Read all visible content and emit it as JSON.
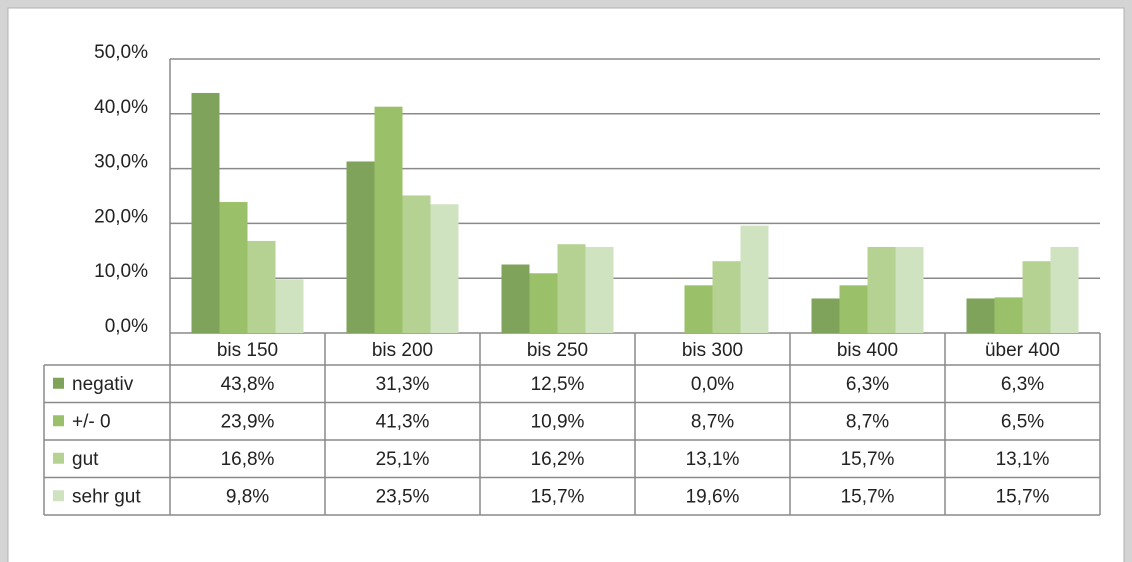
{
  "chart_data": {
    "type": "bar",
    "categories": [
      "bis 150",
      "bis 200",
      "bis 250",
      "bis 300",
      "bis 400",
      "über 400"
    ],
    "series": [
      {
        "name": "negativ",
        "color": "#7fa35a",
        "values": [
          43.8,
          31.3,
          12.5,
          0.0,
          6.3,
          6.3
        ],
        "value_labels": [
          "43,8%",
          "31,3%",
          "12,5%",
          "0,0%",
          "6,3%",
          "6,3%"
        ]
      },
      {
        "name": "+/- 0",
        "color": "#9bc06a",
        "values": [
          23.9,
          41.3,
          10.9,
          8.7,
          8.7,
          6.5
        ],
        "value_labels": [
          "23,9%",
          "41,3%",
          "10,9%",
          "8,7%",
          "8,7%",
          "6,5%"
        ]
      },
      {
        "name": "gut",
        "color": "#b5d292",
        "values": [
          16.8,
          25.1,
          16.2,
          13.1,
          15.7,
          13.1
        ],
        "value_labels": [
          "16,8%",
          "25,1%",
          "16,2%",
          "13,1%",
          "15,7%",
          "13,1%"
        ]
      },
      {
        "name": "sehr gut",
        "color": "#cfe3c0",
        "values": [
          9.8,
          23.5,
          15.7,
          19.6,
          15.7,
          15.7
        ],
        "value_labels": [
          "9,8%",
          "23,5%",
          "15,7%",
          "19,6%",
          "15,7%",
          "15,7%"
        ]
      }
    ],
    "ylim": [
      0,
      50
    ],
    "yticks": [
      {
        "value": 0,
        "label": "0,0%"
      },
      {
        "value": 10,
        "label": "10,0%"
      },
      {
        "value": 20,
        "label": "20,0%"
      },
      {
        "value": 30,
        "label": "30,0%"
      },
      {
        "value": 40,
        "label": "40,0%"
      },
      {
        "value": 50,
        "label": "50,0%"
      }
    ],
    "grid": true,
    "legend": "table"
  }
}
